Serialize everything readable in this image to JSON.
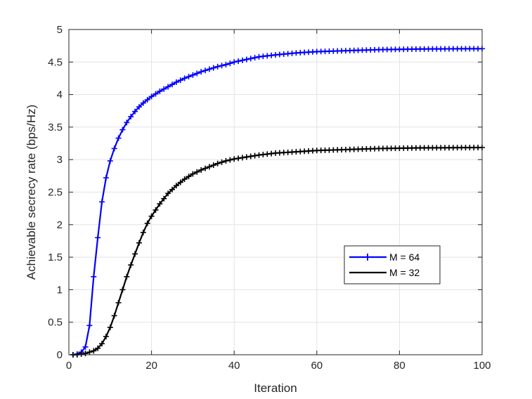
{
  "chart_data": {
    "type": "line",
    "title": "",
    "xlabel": "Iteration",
    "ylabel": "Achievable secrecy rate (bps/Hz)",
    "xlim": [
      0,
      100
    ],
    "ylim": [
      0,
      5
    ],
    "xticks": [
      0,
      20,
      40,
      60,
      80,
      100
    ],
    "yticks": [
      0,
      0.5,
      1,
      1.5,
      2,
      2.5,
      3,
      3.5,
      4,
      4.5,
      5
    ],
    "xtick_labels": [
      "0",
      "20",
      "40",
      "60",
      "80",
      "100"
    ],
    "ytick_labels": [
      "0",
      "0.5",
      "1",
      "1.5",
      "2",
      "2.5",
      "3",
      "3.5",
      "4",
      "4.5",
      "5"
    ],
    "grid": true,
    "legend_position": "lower-right",
    "x": [
      1,
      2,
      3,
      4,
      5,
      6,
      7,
      8,
      9,
      10,
      11,
      12,
      13,
      14,
      15,
      16,
      17,
      18,
      19,
      20,
      22,
      24,
      26,
      28,
      30,
      32,
      34,
      36,
      38,
      40,
      43,
      46,
      50,
      55,
      60,
      65,
      70,
      75,
      80,
      85,
      90,
      95,
      100
    ],
    "series": [
      {
        "name": "M = 64",
        "color": "#0000ff",
        "marker": "+",
        "values": [
          0.0,
          0.01,
          0.04,
          0.12,
          0.45,
          1.2,
          1.8,
          2.35,
          2.72,
          2.98,
          3.17,
          3.33,
          3.46,
          3.57,
          3.66,
          3.74,
          3.81,
          3.87,
          3.92,
          3.97,
          4.05,
          4.12,
          4.19,
          4.25,
          4.3,
          4.35,
          4.39,
          4.43,
          4.46,
          4.5,
          4.54,
          4.58,
          4.61,
          4.64,
          4.66,
          4.67,
          4.68,
          4.69,
          4.695,
          4.7,
          4.702,
          4.704,
          4.705
        ]
      },
      {
        "name": "M = 32",
        "color": "#000000",
        "marker": "+",
        "values": [
          0.0,
          0.0,
          0.01,
          0.02,
          0.04,
          0.06,
          0.1,
          0.17,
          0.28,
          0.42,
          0.6,
          0.8,
          1.0,
          1.2,
          1.38,
          1.55,
          1.72,
          1.88,
          2.02,
          2.13,
          2.32,
          2.48,
          2.6,
          2.7,
          2.78,
          2.84,
          2.89,
          2.94,
          2.98,
          3.01,
          3.04,
          3.07,
          3.1,
          3.12,
          3.14,
          3.15,
          3.16,
          3.17,
          3.175,
          3.18,
          3.182,
          3.184,
          3.186
        ]
      }
    ]
  }
}
